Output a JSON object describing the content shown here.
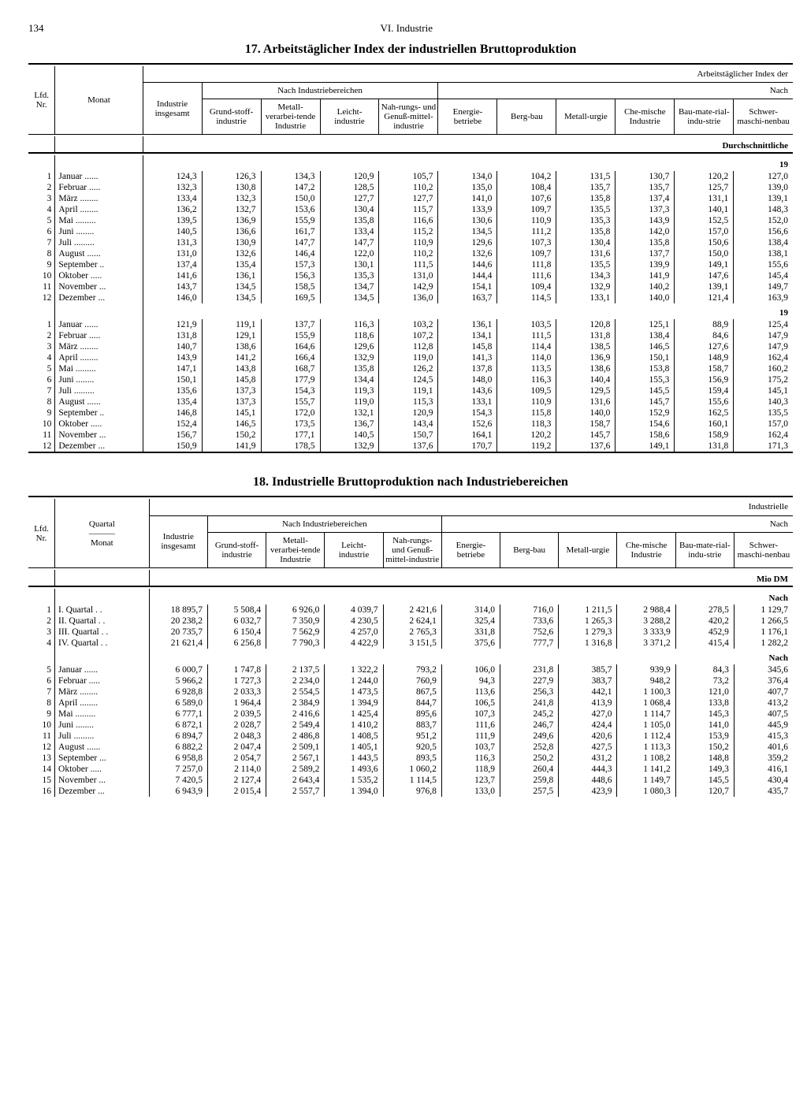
{
  "page": {
    "number": "134",
    "chapter": "VI. Industrie"
  },
  "t17": {
    "title": "17. Arbeitstäglicher Index der industriellen Bruttoproduktion",
    "super_right": "Arbeitstäglicher Index der",
    "group_header": "Nach Industriebereichen",
    "group_header2": "Nach",
    "avg_label": "Durchschnittliche",
    "year_label": "19",
    "cols": {
      "nr": "Lfd. Nr.",
      "monat": "Monat",
      "c1": "Industrie insgesamt",
      "c2": "Grund-stoff-industrie",
      "c3": "Metall-verarbei-tende Industrie",
      "c4": "Leicht-industrie",
      "c5": "Nah-rungs- und Genuß-mittel-industrie",
      "c6": "Energie-betriebe",
      "c7": "Berg-bau",
      "c8": "Metall-urgie",
      "c9": "Che-mische Industrie",
      "c10": "Bau-mate-rial-indu-strie",
      "c11": "Schwer-maschi-nenbau"
    },
    "months": [
      "Januar ......",
      "Februar .....",
      "März ........",
      "April ........",
      "Mai .........",
      "Juni ........",
      "Juli .........",
      "August ......",
      "September ..",
      "Oktober .....",
      "November ...",
      "Dezember ..."
    ],
    "block1": [
      [
        "124,3",
        "126,3",
        "134,3",
        "120,9",
        "105,7",
        "134,0",
        "104,2",
        "131,5",
        "130,7",
        "120,2",
        "127,0"
      ],
      [
        "132,3",
        "130,8",
        "147,2",
        "128,5",
        "110,2",
        "135,0",
        "108,4",
        "135,7",
        "135,7",
        "125,7",
        "139,0"
      ],
      [
        "133,4",
        "132,3",
        "150,0",
        "127,7",
        "127,7",
        "141,0",
        "107,6",
        "135,8",
        "137,4",
        "131,1",
        "139,1"
      ],
      [
        "136,2",
        "132,7",
        "153,6",
        "130,4",
        "115,7",
        "133,9",
        "109,7",
        "135,5",
        "137,3",
        "140,1",
        "148,3"
      ],
      [
        "139,5",
        "136,9",
        "155,9",
        "135,8",
        "116,6",
        "130,6",
        "110,9",
        "135,3",
        "143,9",
        "152,5",
        "152,0"
      ],
      [
        "140,5",
        "136,6",
        "161,7",
        "133,4",
        "115,2",
        "134,5",
        "111,2",
        "135,8",
        "142,0",
        "157,0",
        "156,6"
      ],
      [
        "131,3",
        "130,9",
        "147,7",
        "147,7",
        "110,9",
        "129,6",
        "107,3",
        "130,4",
        "135,8",
        "150,6",
        "138,4"
      ],
      [
        "131,0",
        "132,6",
        "146,4",
        "122,0",
        "110,2",
        "132,6",
        "109,7",
        "131,6",
        "137,7",
        "150,0",
        "138,1"
      ],
      [
        "137,4",
        "135,4",
        "157,3",
        "130,1",
        "111,5",
        "144,6",
        "111,8",
        "135,5",
        "139,9",
        "149,1",
        "155,6"
      ],
      [
        "141,6",
        "136,1",
        "156,3",
        "135,3",
        "131,0",
        "144,4",
        "111,6",
        "134,3",
        "141,9",
        "147,6",
        "145,4"
      ],
      [
        "143,7",
        "134,5",
        "158,5",
        "134,7",
        "142,9",
        "154,1",
        "109,4",
        "132,9",
        "140,2",
        "139,1",
        "149,7"
      ],
      [
        "146,0",
        "134,5",
        "169,5",
        "134,5",
        "136,0",
        "163,7",
        "114,5",
        "133,1",
        "140,0",
        "121,4",
        "163,9"
      ]
    ],
    "block2": [
      [
        "121,9",
        "119,1",
        "137,7",
        "116,3",
        "103,2",
        "136,1",
        "103,5",
        "120,8",
        "125,1",
        "88,9",
        "125,4"
      ],
      [
        "131,8",
        "129,1",
        "155,9",
        "118,6",
        "107,2",
        "134,1",
        "111,5",
        "131,8",
        "138,4",
        "84,6",
        "147,9"
      ],
      [
        "140,7",
        "138,6",
        "164,6",
        "129,6",
        "112,8",
        "145,8",
        "114,4",
        "138,5",
        "146,5",
        "127,6",
        "147,9"
      ],
      [
        "143,9",
        "141,2",
        "166,4",
        "132,9",
        "119,0",
        "141,3",
        "114,0",
        "136,9",
        "150,1",
        "148,9",
        "162,4"
      ],
      [
        "147,1",
        "143,8",
        "168,7",
        "135,8",
        "126,2",
        "137,8",
        "113,5",
        "138,6",
        "153,8",
        "158,7",
        "160,2"
      ],
      [
        "150,1",
        "145,8",
        "177,9",
        "134,4",
        "124,5",
        "148,0",
        "116,3",
        "140,4",
        "155,3",
        "156,9",
        "175,2"
      ],
      [
        "135,6",
        "137,3",
        "154,3",
        "119,3",
        "119,1",
        "143,6",
        "109,5",
        "129,5",
        "145,5",
        "159,4",
        "145,1"
      ],
      [
        "135,4",
        "137,3",
        "155,7",
        "119,0",
        "115,3",
        "133,1",
        "110,9",
        "131,6",
        "145,7",
        "155,6",
        "140,3"
      ],
      [
        "146,8",
        "145,1",
        "172,0",
        "132,1",
        "120,9",
        "154,3",
        "115,8",
        "140,0",
        "152,9",
        "162,5",
        "135,5"
      ],
      [
        "152,4",
        "146,5",
        "173,5",
        "136,7",
        "143,4",
        "152,6",
        "118,3",
        "158,7",
        "154,6",
        "160,1",
        "157,0"
      ],
      [
        "156,7",
        "150,2",
        "177,1",
        "140,5",
        "150,7",
        "164,1",
        "120,2",
        "145,7",
        "158,6",
        "158,9",
        "162,4"
      ],
      [
        "150,9",
        "141,9",
        "178,5",
        "132,9",
        "137,6",
        "170,7",
        "119,2",
        "137,6",
        "149,1",
        "131,8",
        "171,3"
      ]
    ]
  },
  "t18": {
    "title": "18. Industrielle Bruttoproduktion nach Industriebereichen",
    "super_right": "Industrielle",
    "group_header": "Nach Industriebereichen",
    "group_header2": "Nach",
    "unit_label": "Mio DM",
    "nach_label": "Nach",
    "cols": {
      "nr": "Lfd. Nr.",
      "quartal": "Quartal\n———\nMonat",
      "c1": "Industrie insgesamt",
      "c2": "Grund-stoff-industrie",
      "c3": "Metall-verarbei-tende Industrie",
      "c4": "Leicht-industrie",
      "c5": "Nah-rungs- und Genuß-mittel-industrie",
      "c6": "Energie-betriebe",
      "c7": "Berg-bau",
      "c8": "Metall-urgie",
      "c9": "Che-mische Industrie",
      "c10": "Bau-mate-rial-indu-strie",
      "c11": "Schwer-maschi-nenbau"
    },
    "quarters": [
      "I. Quartal . .",
      "II. Quartal . .",
      "III. Quartal . .",
      "IV. Quartal . ."
    ],
    "qrows": [
      [
        "18 895,7",
        "5 508,4",
        "6 926,0",
        "4 039,7",
        "2 421,6",
        "314,0",
        "716,0",
        "1 211,5",
        "2 988,4",
        "278,5",
        "1 129,7"
      ],
      [
        "20 238,2",
        "6 032,7",
        "7 350,9",
        "4 230,5",
        "2 624,1",
        "325,4",
        "733,6",
        "1 265,3",
        "3 288,2",
        "420,2",
        "1 266,5"
      ],
      [
        "20 735,7",
        "6 150,4",
        "7 562,9",
        "4 257,0",
        "2 765,3",
        "331,8",
        "752,6",
        "1 279,3",
        "3 333,9",
        "452,9",
        "1 176,1"
      ],
      [
        "21 621,4",
        "6 256,8",
        "7 790,3",
        "4 422,9",
        "3 151,5",
        "375,6",
        "777,7",
        "1 316,8",
        "3 371,2",
        "415,4",
        "1 282,2"
      ]
    ],
    "months": [
      "Januar ......",
      "Februar .....",
      "März ........",
      "April ........",
      "Mai .........",
      "Juni ........",
      "Juli .........",
      "August ......",
      "September ...",
      "Oktober .....",
      "November ...",
      "Dezember ..."
    ],
    "mrows": [
      [
        "6 000,7",
        "1 747,8",
        "2 137,5",
        "1 322,2",
        "793,2",
        "106,0",
        "231,8",
        "385,7",
        "939,9",
        "84,3",
        "345,6"
      ],
      [
        "5 966,2",
        "1 727,3",
        "2 234,0",
        "1 244,0",
        "760,9",
        "94,3",
        "227,9",
        "383,7",
        "948,2",
        "73,2",
        "376,4"
      ],
      [
        "6 928,8",
        "2 033,3",
        "2 554,5",
        "1 473,5",
        "867,5",
        "113,6",
        "256,3",
        "442,1",
        "1 100,3",
        "121,0",
        "407,7"
      ],
      [
        "6 589,0",
        "1 964,4",
        "2 384,9",
        "1 394,9",
        "844,7",
        "106,5",
        "241,8",
        "413,9",
        "1 068,4",
        "133,8",
        "413,2"
      ],
      [
        "6 777,1",
        "2 039,5",
        "2 416,6",
        "1 425,4",
        "895,6",
        "107,3",
        "245,2",
        "427,0",
        "1 114,7",
        "145,3",
        "407,5"
      ],
      [
        "6 872,1",
        "2 028,7",
        "2 549,4",
        "1 410,2",
        "883,7",
        "111,6",
        "246,7",
        "424,4",
        "1 105,0",
        "141,0",
        "445,9"
      ],
      [
        "6 894,7",
        "2 048,3",
        "2 486,8",
        "1 408,5",
        "951,2",
        "111,9",
        "249,6",
        "420,6",
        "1 112,4",
        "153,9",
        "415,3"
      ],
      [
        "6 882,2",
        "2 047,4",
        "2 509,1",
        "1 405,1",
        "920,5",
        "103,7",
        "252,8",
        "427,5",
        "1 113,3",
        "150,2",
        "401,6"
      ],
      [
        "6 958,8",
        "2 054,7",
        "2 567,1",
        "1 443,5",
        "893,5",
        "116,3",
        "250,2",
        "431,2",
        "1 108,2",
        "148,8",
        "359,2"
      ],
      [
        "7 257,0",
        "2 114,0",
        "2 589,2",
        "1 493,6",
        "1 060,2",
        "118,9",
        "260,4",
        "444,3",
        "1 141,2",
        "149,3",
        "416,1"
      ],
      [
        "7 420,5",
        "2 127,4",
        "2 643,4",
        "1 535,2",
        "1 114,5",
        "123,7",
        "259,8",
        "448,6",
        "1 149,7",
        "145,5",
        "430,4"
      ],
      [
        "6 943,9",
        "2 015,4",
        "2 557,7",
        "1 394,0",
        "976,8",
        "133,0",
        "257,5",
        "423,9",
        "1 080,3",
        "120,7",
        "435,7"
      ]
    ]
  }
}
